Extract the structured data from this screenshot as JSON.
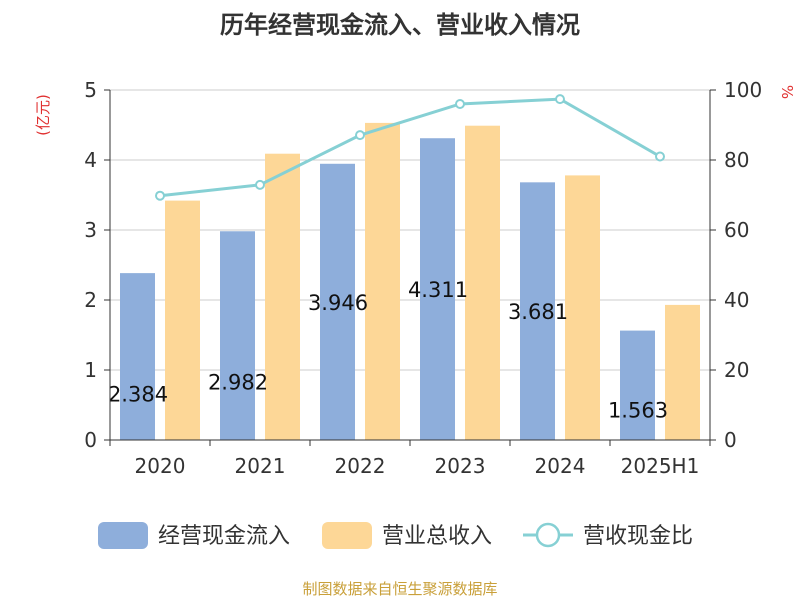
{
  "title": "历年经营现金流入、营业收入情况",
  "source": "制图数据来自恒生聚源数据库",
  "colors": {
    "cash_inflow": "#8eaedb",
    "revenue": "#fdd797",
    "ratio_line": "#86d0d4",
    "axis_unit_text": "#e03030",
    "source_text": "#c9a03a",
    "grid": "#cccccc",
    "axis": "#333333"
  },
  "chart_data": {
    "type": "bar",
    "categories": [
      "2020",
      "2021",
      "2022",
      "2023",
      "2024",
      "2025H1"
    ],
    "series": [
      {
        "name": "经营现金流入",
        "kind": "bar",
        "axis": "left",
        "values": [
          2.384,
          2.982,
          3.946,
          4.311,
          3.681,
          1.563
        ],
        "labels": [
          "2.384",
          "2.982",
          "3.946",
          "4.311",
          "3.681",
          "1.563"
        ]
      },
      {
        "name": "营业总收入",
        "kind": "bar",
        "axis": "left",
        "values": [
          3.42,
          4.09,
          4.53,
          4.49,
          3.78,
          1.93
        ]
      },
      {
        "name": "营收现金比",
        "kind": "line",
        "axis": "right",
        "values": [
          69.8,
          72.9,
          87.1,
          96.0,
          97.4,
          81.0
        ]
      }
    ],
    "y_left": {
      "unit": "(亿元)",
      "ylim": [
        0,
        5
      ],
      "ticks": [
        "0",
        "1",
        "2",
        "3",
        "4",
        "5"
      ]
    },
    "y_right": {
      "unit": "%",
      "ylim": [
        0,
        100
      ],
      "ticks": [
        "0",
        "20",
        "40",
        "60",
        "80",
        "100"
      ]
    },
    "grid": true,
    "legend_position": "bottom"
  }
}
